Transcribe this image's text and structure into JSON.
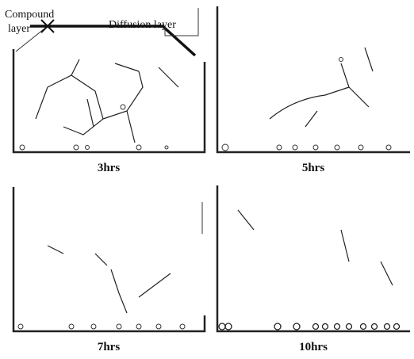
{
  "annotations": {
    "compound_layer": [
      "Compound",
      "layer"
    ],
    "diffusion_layer": "Diffusion layer"
  },
  "panels": [
    {
      "label": "3hrs"
    },
    {
      "label": "5hrs"
    },
    {
      "label": "7hrs"
    },
    {
      "label": "10hrs"
    }
  ]
}
